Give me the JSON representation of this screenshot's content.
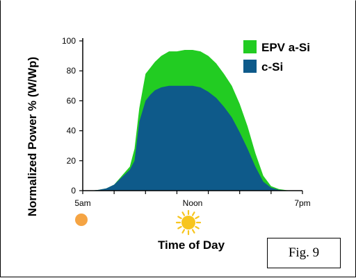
{
  "chart_data": {
    "type": "area",
    "title": "",
    "xlabel": "Time of Day",
    "ylabel": "Normalized Power % (W/Wp)",
    "ylim": [
      0,
      100
    ],
    "yticks": [
      "0",
      "20",
      "40",
      "60",
      "80",
      "100"
    ],
    "xlim": [
      5,
      19
    ],
    "xticks": [
      {
        "value": 5,
        "label": "5am"
      },
      {
        "value": 12,
        "label": "Noon"
      },
      {
        "value": 19,
        "label": "7pm"
      }
    ],
    "x": [
      5,
      5.5,
      6,
      6.5,
      7,
      7.5,
      8,
      8.3,
      8.6,
      9,
      9.3,
      9.6,
      10,
      10.5,
      11,
      11.5,
      12,
      12.5,
      13,
      13.5,
      14,
      14.5,
      15,
      15.5,
      16,
      16.5,
      17,
      17.5,
      18,
      18.5,
      19
    ],
    "series": [
      {
        "name": "EPV a-Si",
        "color": "#22cc22",
        "values": [
          0,
          0,
          0.5,
          1.5,
          4,
          10,
          16,
          28,
          55,
          78,
          82,
          86,
          90,
          93,
          93,
          94,
          94,
          93,
          90,
          85,
          78,
          70,
          58,
          43,
          25,
          10,
          3,
          1,
          0.3,
          0,
          0
        ]
      },
      {
        "name": "c-Si",
        "color": "#0e5a8a",
        "values": [
          0,
          0,
          0.5,
          1.5,
          4,
          9,
          14,
          20,
          46,
          60,
          64,
          67,
          69,
          70,
          70,
          70,
          70,
          69,
          66,
          62,
          56,
          49,
          39,
          28,
          16,
          6,
          2,
          0.5,
          0.2,
          0,
          0
        ]
      }
    ],
    "legend": {
      "position": "top-right"
    },
    "grid": false
  },
  "icons": [
    {
      "name": "sun-low-icon",
      "color": "#f5a443"
    },
    {
      "name": "sun-icon",
      "color": "#f7c51e"
    },
    {
      "name": "moon-icon",
      "color": "#dde6f6"
    }
  ],
  "figure_label": "Fig. 9"
}
